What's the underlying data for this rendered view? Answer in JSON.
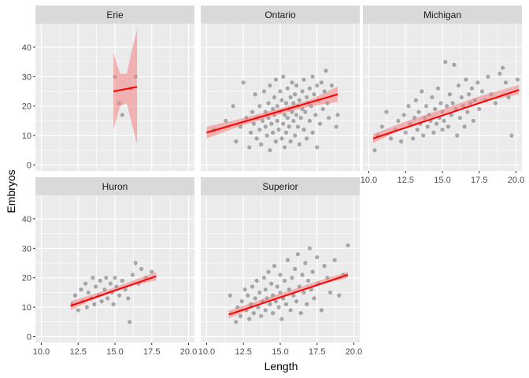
{
  "chart_data": {
    "type": "scatter",
    "xlabel": "Length",
    "ylabel": "Embryos",
    "xlim": [
      9.6,
      20.4
    ],
    "ylim": [
      -2,
      48
    ],
    "xticks": [
      10.0,
      12.5,
      15.0,
      17.5,
      20.0
    ],
    "xtick_labels": [
      "10.0",
      "12.5",
      "15.0",
      "17.5",
      "20.0"
    ],
    "yticks": [
      0,
      10,
      20,
      30,
      40
    ],
    "ytick_labels": [
      "0",
      "10",
      "20",
      "30",
      "40"
    ],
    "grid": true,
    "colors": {
      "panel_bg": "#EBEBEB",
      "strip_bg": "#D9D9D9",
      "grid": "#FFFFFF",
      "point": "#000000",
      "trend_line": "#FF0000",
      "ribbon": "#F08080"
    },
    "facets": [
      {
        "name": "Erie",
        "fit": {
          "x": [
            14.9,
            16.5
          ],
          "y": [
            25,
            26.5
          ]
        },
        "ribbon": {
          "x": [
            14.9,
            15.35,
            15.8,
            16.15,
            16.5
          ],
          "lower": [
            12,
            20,
            21,
            14,
            7
          ],
          "upper": [
            38,
            31,
            31,
            39,
            46
          ]
        },
        "points": [
          [
            15.0,
            30
          ],
          [
            15.3,
            21
          ],
          [
            15.5,
            17
          ],
          [
            16.1,
            26
          ],
          [
            16.4,
            30
          ]
        ]
      },
      {
        "name": "Ontario",
        "fit": {
          "x": [
            10.0,
            18.9
          ],
          "y": [
            11,
            24
          ]
        },
        "ribbon": {
          "x": [
            10.0,
            12.0,
            14.5,
            17.0,
            18.9
          ],
          "lower": [
            9.0,
            12.7,
            16.6,
            19.9,
            21.4
          ],
          "upper": [
            13.0,
            15.3,
            18.6,
            22.1,
            26.6
          ]
        },
        "points": [
          [
            10.5,
            12
          ],
          [
            11.3,
            15
          ],
          [
            11.8,
            20
          ],
          [
            12.0,
            8
          ],
          [
            12.3,
            13
          ],
          [
            12.5,
            28
          ],
          [
            12.7,
            16
          ],
          [
            12.9,
            6
          ],
          [
            13.0,
            11
          ],
          [
            13.1,
            18
          ],
          [
            13.2,
            14
          ],
          [
            13.3,
            24
          ],
          [
            13.4,
            9
          ],
          [
            13.5,
            16
          ],
          [
            13.6,
            20
          ],
          [
            13.6,
            12
          ],
          [
            13.7,
            7
          ],
          [
            13.8,
            15
          ],
          [
            13.9,
            25
          ],
          [
            14.0,
            18
          ],
          [
            14.0,
            13
          ],
          [
            14.1,
            10
          ],
          [
            14.2,
            21
          ],
          [
            14.2,
            16
          ],
          [
            14.3,
            27
          ],
          [
            14.3,
            5
          ],
          [
            14.4,
            14
          ],
          [
            14.5,
            19
          ],
          [
            14.5,
            11
          ],
          [
            14.6,
            23
          ],
          [
            14.6,
            17
          ],
          [
            14.7,
            8
          ],
          [
            14.7,
            29
          ],
          [
            14.8,
            15
          ],
          [
            14.8,
            20
          ],
          [
            14.9,
            12
          ],
          [
            15.0,
            25
          ],
          [
            15.0,
            18
          ],
          [
            15.1,
            9
          ],
          [
            15.1,
            22
          ],
          [
            15.2,
            14
          ],
          [
            15.2,
            30
          ],
          [
            15.3,
            17
          ],
          [
            15.3,
            6
          ],
          [
            15.4,
            21
          ],
          [
            15.4,
            11
          ],
          [
            15.5,
            26
          ],
          [
            15.5,
            16
          ],
          [
            15.6,
            19
          ],
          [
            15.6,
            13
          ],
          [
            15.7,
            23
          ],
          [
            15.7,
            8
          ],
          [
            15.8,
            28
          ],
          [
            15.8,
            18
          ],
          [
            15.9,
            15
          ],
          [
            15.9,
            21
          ],
          [
            16.0,
            10
          ],
          [
            16.0,
            24
          ],
          [
            16.1,
            17
          ],
          [
            16.1,
            27
          ],
          [
            16.2,
            13
          ],
          [
            16.2,
            20
          ],
          [
            16.3,
            7
          ],
          [
            16.3,
            22
          ],
          [
            16.4,
            16
          ],
          [
            16.5,
            25
          ],
          [
            16.5,
            19
          ],
          [
            16.6,
            12
          ],
          [
            16.6,
            29
          ],
          [
            16.7,
            18
          ],
          [
            16.8,
            23
          ],
          [
            16.8,
            9
          ],
          [
            16.9,
            21
          ],
          [
            17.0,
            26
          ],
          [
            17.0,
            15
          ],
          [
            17.1,
            20
          ],
          [
            17.2,
            30
          ],
          [
            17.2,
            11
          ],
          [
            17.3,
            24
          ],
          [
            17.4,
            17
          ],
          [
            17.5,
            6
          ],
          [
            17.5,
            27
          ],
          [
            17.6,
            22
          ],
          [
            17.7,
            14
          ],
          [
            17.8,
            28
          ],
          [
            17.9,
            19
          ],
          [
            18.0,
            25
          ],
          [
            18.1,
            32
          ],
          [
            18.2,
            21
          ],
          [
            18.3,
            16
          ],
          [
            18.5,
            27
          ],
          [
            18.8,
            13
          ],
          [
            18.9,
            17
          ]
        ]
      },
      {
        "name": "Michigan",
        "fit": {
          "x": [
            10.3,
            20.2
          ],
          "y": [
            9,
            25.5
          ]
        },
        "ribbon": {
          "x": [
            10.3,
            12.5,
            15.0,
            17.5,
            20.2
          ],
          "lower": [
            7.5,
            12.8,
            17.3,
            21.3,
            24.0
          ],
          "upper": [
            10.5,
            14.8,
            18.9,
            23.3,
            27.2
          ]
        },
        "points": [
          [
            10.4,
            5
          ],
          [
            10.6,
            10
          ],
          [
            10.9,
            13
          ],
          [
            11.2,
            18
          ],
          [
            11.5,
            9
          ],
          [
            11.8,
            12
          ],
          [
            12.0,
            15
          ],
          [
            12.2,
            8
          ],
          [
            12.4,
            17
          ],
          [
            12.5,
            11
          ],
          [
            12.7,
            20
          ],
          [
            12.8,
            14
          ],
          [
            13.0,
            9
          ],
          [
            13.1,
            16
          ],
          [
            13.2,
            22
          ],
          [
            13.3,
            12
          ],
          [
            13.4,
            18
          ],
          [
            13.5,
            14
          ],
          [
            13.6,
            25
          ],
          [
            13.7,
            10
          ],
          [
            13.8,
            16
          ],
          [
            13.9,
            20
          ],
          [
            14.0,
            13
          ],
          [
            14.1,
            17
          ],
          [
            14.2,
            15
          ],
          [
            14.3,
            23
          ],
          [
            14.4,
            11
          ],
          [
            14.5,
            19
          ],
          [
            14.6,
            14
          ],
          [
            14.7,
            26
          ],
          [
            14.8,
            16
          ],
          [
            14.9,
            21
          ],
          [
            15.0,
            12
          ],
          [
            15.0,
            18
          ],
          [
            15.1,
            15
          ],
          [
            15.2,
            35
          ],
          [
            15.3,
            20
          ],
          [
            15.4,
            13
          ],
          [
            15.5,
            24
          ],
          [
            15.6,
            17
          ],
          [
            15.7,
            21
          ],
          [
            15.8,
            34
          ],
          [
            15.9,
            19
          ],
          [
            16.0,
            10
          ],
          [
            16.1,
            27
          ],
          [
            16.2,
            16
          ],
          [
            16.3,
            23
          ],
          [
            16.4,
            20
          ],
          [
            16.5,
            13
          ],
          [
            16.6,
            29
          ],
          [
            16.7,
            18
          ],
          [
            16.8,
            24
          ],
          [
            16.9,
            21
          ],
          [
            17.0,
            26
          ],
          [
            17.1,
            15
          ],
          [
            17.2,
            22
          ],
          [
            17.4,
            28
          ],
          [
            17.5,
            19
          ],
          [
            17.7,
            25
          ],
          [
            17.9,
            22
          ],
          [
            18.1,
            30
          ],
          [
            18.3,
            24
          ],
          [
            18.6,
            21
          ],
          [
            18.9,
            31
          ],
          [
            19.1,
            33
          ],
          [
            19.3,
            28
          ],
          [
            19.5,
            23
          ],
          [
            19.7,
            10
          ],
          [
            20.1,
            29
          ]
        ]
      },
      {
        "name": "Huron",
        "fit": {
          "x": [
            12.0,
            17.8
          ],
          "y": [
            10.5,
            20.5
          ]
        },
        "ribbon": {
          "x": [
            12.0,
            13.5,
            15.0,
            16.5,
            17.8
          ],
          "lower": [
            9.0,
            12.6,
            15.3,
            17.8,
            19.1
          ],
          "upper": [
            12.0,
            14.4,
            16.7,
            19.6,
            21.9
          ]
        },
        "points": [
          [
            12.1,
            11
          ],
          [
            12.3,
            14
          ],
          [
            12.5,
            9
          ],
          [
            12.7,
            16
          ],
          [
            12.8,
            12
          ],
          [
            13.0,
            18
          ],
          [
            13.1,
            10
          ],
          [
            13.2,
            15
          ],
          [
            13.4,
            13
          ],
          [
            13.5,
            20
          ],
          [
            13.6,
            11
          ],
          [
            13.7,
            17
          ],
          [
            13.9,
            14
          ],
          [
            14.0,
            19
          ],
          [
            14.1,
            12
          ],
          [
            14.3,
            16
          ],
          [
            14.4,
            20
          ],
          [
            14.5,
            13
          ],
          [
            14.7,
            18
          ],
          [
            14.8,
            15
          ],
          [
            14.9,
            11
          ],
          [
            15.0,
            20
          ],
          [
            15.1,
            17
          ],
          [
            15.3,
            14
          ],
          [
            15.5,
            19
          ],
          [
            15.7,
            16
          ],
          [
            15.9,
            13
          ],
          [
            16.0,
            5
          ],
          [
            16.2,
            21
          ],
          [
            16.4,
            25
          ],
          [
            16.6,
            18
          ],
          [
            16.8,
            23
          ],
          [
            17.1,
            20
          ],
          [
            17.5,
            22
          ]
        ]
      },
      {
        "name": "Superior",
        "fit": {
          "x": [
            11.5,
            19.6
          ],
          "y": [
            7.5,
            21
          ]
        },
        "ribbon": {
          "x": [
            11.5,
            13.5,
            15.5,
            17.5,
            19.6
          ],
          "lower": [
            6.2,
            10.6,
            14.2,
            17.4,
            20.0
          ],
          "upper": [
            8.8,
            12.2,
            15.4,
            18.8,
            22.0
          ]
        },
        "points": [
          [
            11.6,
            14
          ],
          [
            12.0,
            5
          ],
          [
            12.1,
            10
          ],
          [
            12.3,
            7
          ],
          [
            12.4,
            12
          ],
          [
            12.6,
            16
          ],
          [
            12.7,
            9
          ],
          [
            12.8,
            14
          ],
          [
            12.9,
            6
          ],
          [
            13.0,
            11
          ],
          [
            13.1,
            17
          ],
          [
            13.2,
            8
          ],
          [
            13.3,
            13
          ],
          [
            13.4,
            19
          ],
          [
            13.5,
            10
          ],
          [
            13.6,
            15
          ],
          [
            13.7,
            7
          ],
          [
            13.8,
            12
          ],
          [
            13.9,
            20
          ],
          [
            14.0,
            9
          ],
          [
            14.0,
            16
          ],
          [
            14.1,
            13
          ],
          [
            14.2,
            22
          ],
          [
            14.3,
            11
          ],
          [
            14.4,
            18
          ],
          [
            14.5,
            8
          ],
          [
            14.5,
            14
          ],
          [
            14.6,
            24
          ],
          [
            14.7,
            12
          ],
          [
            14.8,
            17
          ],
          [
            14.9,
            10
          ],
          [
            15.0,
            21
          ],
          [
            15.0,
            15
          ],
          [
            15.1,
            6
          ],
          [
            15.2,
            13
          ],
          [
            15.3,
            19
          ],
          [
            15.4,
            11
          ],
          [
            15.5,
            26
          ],
          [
            15.6,
            16
          ],
          [
            15.7,
            9
          ],
          [
            15.8,
            20
          ],
          [
            15.9,
            14
          ],
          [
            16.0,
            23
          ],
          [
            16.1,
            12
          ],
          [
            16.2,
            28
          ],
          [
            16.3,
            17
          ],
          [
            16.4,
            8
          ],
          [
            16.5,
            21
          ],
          [
            16.6,
            15
          ],
          [
            16.7,
            25
          ],
          [
            16.8,
            11
          ],
          [
            16.9,
            19
          ],
          [
            17.0,
            30
          ],
          [
            17.1,
            16
          ],
          [
            17.2,
            22
          ],
          [
            17.3,
            13
          ],
          [
            17.5,
            27
          ],
          [
            17.6,
            18
          ],
          [
            17.8,
            9
          ],
          [
            18.0,
            24
          ],
          [
            18.2,
            20
          ],
          [
            18.4,
            15
          ],
          [
            18.7,
            26
          ],
          [
            19.0,
            14
          ],
          [
            19.3,
            21
          ],
          [
            19.6,
            31
          ]
        ]
      }
    ]
  }
}
